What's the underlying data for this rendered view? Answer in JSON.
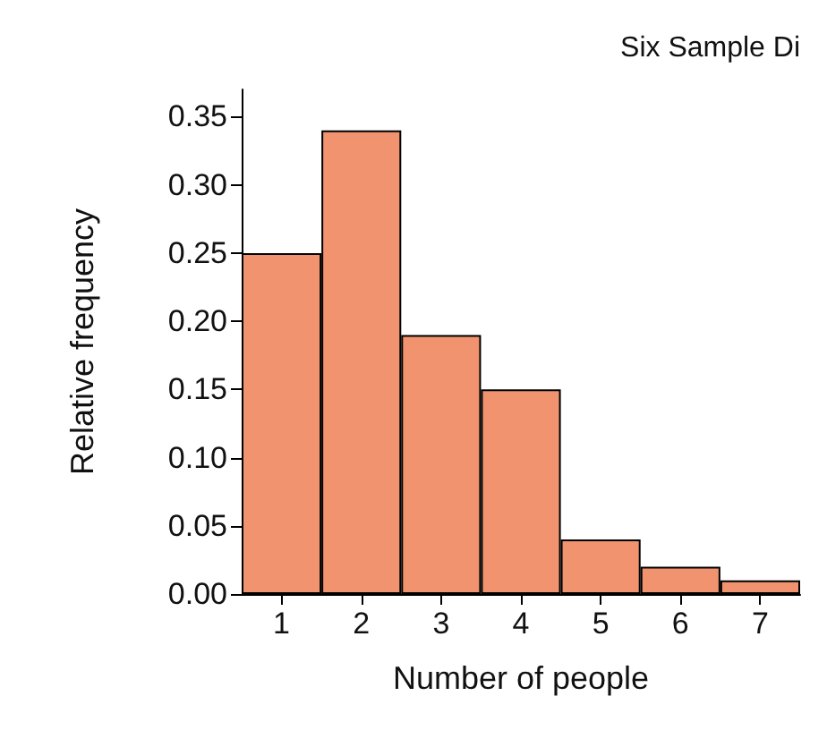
{
  "chart_data": {
    "type": "bar",
    "title": "Six Sample Di",
    "xlabel": "Number of people",
    "ylabel": "Relative frequency",
    "categories": [
      "1",
      "2",
      "3",
      "4",
      "5",
      "6",
      "7"
    ],
    "values": [
      0.25,
      0.34,
      0.19,
      0.15,
      0.04,
      0.02,
      0.01
    ],
    "color": "#f0936e",
    "ylim": [
      0,
      0.37
    ],
    "yticks": [
      {
        "value": 0,
        "label": "0.00"
      },
      0.05,
      {
        "value": 0.1,
        "label": "0.10"
      },
      0.15,
      {
        "value": 0.2,
        "label": "0.20"
      },
      0.25,
      {
        "value": 0.3,
        "label": "0.30"
      },
      0.35
    ],
    "grid": false
  }
}
